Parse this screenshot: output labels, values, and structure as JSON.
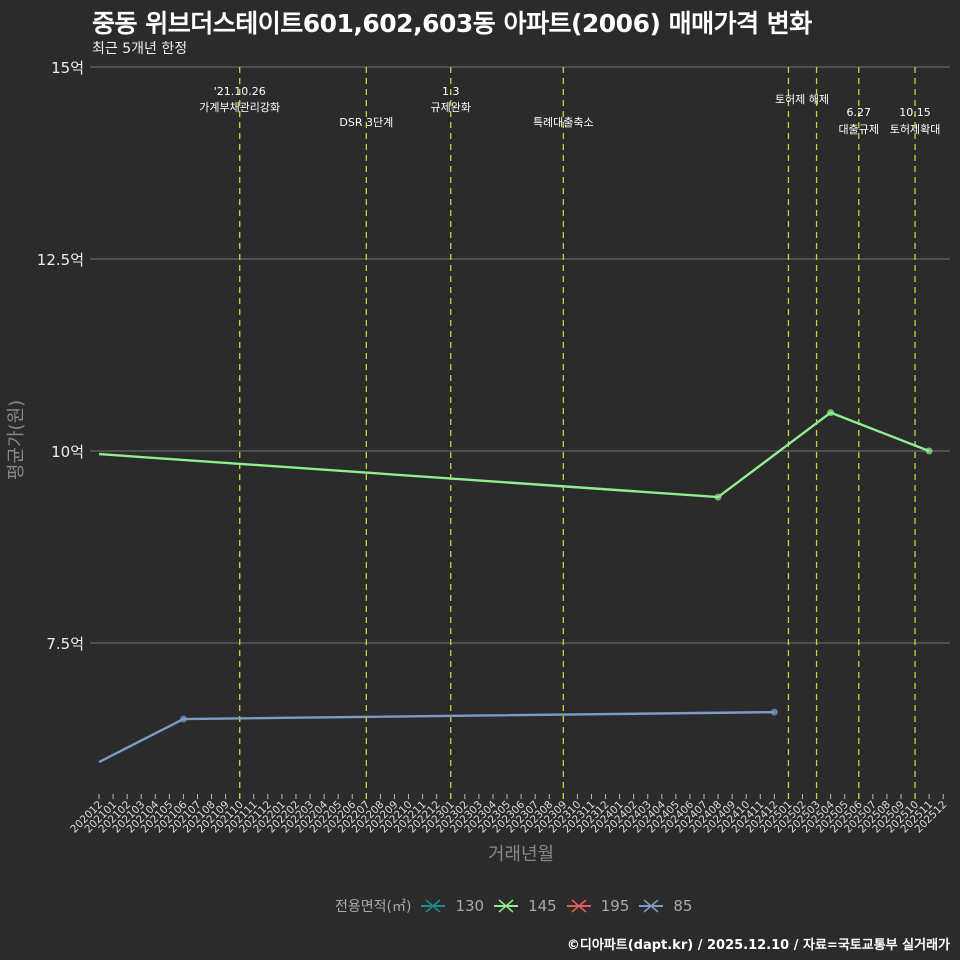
{
  "title": "중동 위브더스테이트601,602,603동 아파트(2006) 매매가격 변화",
  "subtitle": "최근 5개년 한정",
  "footer": "©디아파트(dapt.kr) / 2025.12.10 / 자료=국토교통부 실거래가",
  "legend": {
    "title": "전용면적(㎡)",
    "items": [
      {
        "label": "130",
        "color": "#1a8a8a"
      },
      {
        "label": "145",
        "color": "#90ee90"
      },
      {
        "label": "195",
        "color": "#e85a5a"
      },
      {
        "label": "85",
        "color": "#7b9cc4"
      }
    ]
  },
  "chart_data": {
    "type": "line",
    "title": "중동 위브더스테이트601,602,603동 아파트(2006) 매매가격 변화",
    "subtitle": "최근 5개년 한정",
    "xlabel": "거래년월",
    "ylabel": "평균가(원)",
    "y_ticks": [
      "7.5억",
      "10억",
      "12.5억",
      "15억"
    ],
    "ylim": [
      5.7,
      15
    ],
    "x_ticks": [
      "202012",
      "202101",
      "202102",
      "202103",
      "202104",
      "202105",
      "202106",
      "202107",
      "202108",
      "202109",
      "202110",
      "202111",
      "202112",
      "202201",
      "202202",
      "202203",
      "202204",
      "202205",
      "202206",
      "202207",
      "202208",
      "202209",
      "202210",
      "202211",
      "202212",
      "202301",
      "202302",
      "202303",
      "202304",
      "202305",
      "202306",
      "202307",
      "202308",
      "202309",
      "202310",
      "202311",
      "202312",
      "202401",
      "202402",
      "202403",
      "202404",
      "202405",
      "202406",
      "202407",
      "202408",
      "202409",
      "202410",
      "202411",
      "202412",
      "202501",
      "202502",
      "202503",
      "202504",
      "202505",
      "202506",
      "202507",
      "202508",
      "202509",
      "202510",
      "202511",
      "202512"
    ],
    "series": [
      {
        "name": "145",
        "color": "#90ee90",
        "points": [
          {
            "x": "202012",
            "y": 9.96
          },
          {
            "x": "202408",
            "y": 9.4
          },
          {
            "x": "202504",
            "y": 10.5
          },
          {
            "x": "202511",
            "y": 10.0
          }
        ]
      },
      {
        "name": "85",
        "color": "#7b9cc4",
        "points": [
          {
            "x": "202012",
            "y": 5.95
          },
          {
            "x": "202106",
            "y": 6.51
          },
          {
            "x": "202412",
            "y": 6.6
          }
        ]
      }
    ],
    "annotations": [
      {
        "x": "202110",
        "lines": [
          "'21.10.26",
          "가계부채관리강화"
        ]
      },
      {
        "x": "202207",
        "lines": [
          "DSR 3단계"
        ]
      },
      {
        "x": "202301",
        "lines": [
          "1.3",
          "규제완화"
        ]
      },
      {
        "x": "202309",
        "lines": [
          "특례대출축소"
        ]
      },
      {
        "x": "202501",
        "lines": [
          "토허제 해제"
        ]
      },
      {
        "x": "202503",
        "lines": [
          ""
        ]
      },
      {
        "x": "202506",
        "lines": [
          "6.27",
          "대출규제"
        ]
      },
      {
        "x": "202510",
        "lines": [
          "10.15",
          "토허제확대"
        ]
      }
    ],
    "legend_position": "bottom",
    "grid": true
  }
}
